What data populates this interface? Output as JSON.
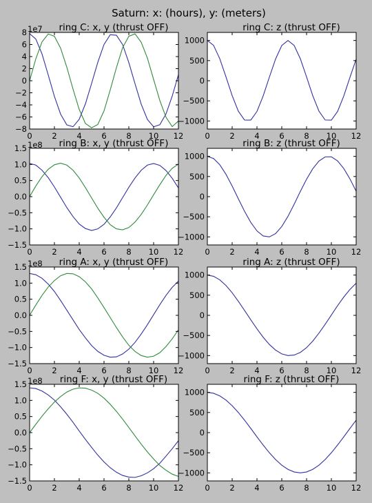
{
  "figure": {
    "title": "Saturn: x: (hours), y: (meters)",
    "background": "#bfbfbf",
    "series_colors": {
      "x": "#3030a0",
      "y": "#2e8b3a",
      "z": "#3030a0"
    }
  },
  "chart_data": [
    {
      "id": "ringC_xy",
      "type": "line",
      "title": "ring C: x, y (thrust OFF)",
      "xlim": [
        0,
        12
      ],
      "xticks": [
        0,
        2,
        4,
        6,
        8,
        10,
        12
      ],
      "ylim": [
        -8,
        8
      ],
      "yticks": [
        -8,
        -6,
        -4,
        -2,
        0,
        2,
        4,
        6,
        8
      ],
      "yscale_label": "1e7",
      "x": [
        0,
        0.5,
        1,
        1.5,
        2,
        2.5,
        3,
        3.5,
        4,
        4.5,
        5,
        5.5,
        6,
        6.5,
        7,
        7.5,
        8,
        8.5,
        9,
        9.5,
        10,
        10.5,
        11,
        11.5,
        12
      ],
      "series": [
        {
          "key": "x",
          "values": [
            7.8,
            6.91,
            4.43,
            0.96,
            -2.6,
            -5.54,
            -7.32,
            -7.62,
            -6.38,
            -3.83,
            -0.44,
            3.06,
            6.0,
            7.62,
            7.54,
            5.99,
            3.01,
            -0.5,
            -3.89,
            -6.43,
            -7.63,
            -7.29,
            -5.49,
            -2.54,
            0.98
          ]
        },
        {
          "key": "y",
          "values": [
            0,
            3.63,
            6.44,
            7.74,
            7.36,
            5.39,
            2.24,
            -1.39,
            -4.76,
            -7.08,
            -7.8,
            -7.24,
            -4.99,
            -1.53,
            2.17,
            5.48,
            7.36,
            7.76,
            6.37,
            3.73,
            0.21,
            -3.28,
            -6.05,
            -7.6,
            -6.68
          ]
        }
      ]
    },
    {
      "id": "ringC_z",
      "type": "line",
      "title": "ring C: z (thrust OFF)",
      "xlim": [
        0,
        12
      ],
      "xticks": [
        0,
        2,
        4,
        6,
        8,
        10,
        12
      ],
      "ylim": [
        -1200,
        1200
      ],
      "yticks": [
        -1000,
        -500,
        0,
        500,
        1000
      ],
      "yscale_label": "",
      "x": [
        0,
        0.5,
        1,
        1.5,
        2,
        2.5,
        3,
        3.5,
        4,
        4.5,
        5,
        5.5,
        6,
        6.5,
        7,
        7.5,
        8,
        8.5,
        9,
        9.5,
        10,
        10.5,
        11,
        11.5,
        12
      ],
      "series": [
        {
          "key": "z",
          "values": [
            1000,
            880,
            548,
            97,
            -370,
            -758,
            -976,
            -978,
            -763,
            -378,
            88,
            538,
            875,
            1000,
            877,
            545,
            95,
            -372,
            -756,
            -975,
            -978,
            -764,
            -380,
            85,
            535
          ]
        }
      ]
    },
    {
      "id": "ringB_xy",
      "type": "line",
      "title": "ring B: x, y (thrust OFF)",
      "xlim": [
        0,
        12
      ],
      "xticks": [
        0,
        2,
        4,
        6,
        8,
        10,
        12
      ],
      "ylim": [
        -1.5,
        1.5
      ],
      "yticks": [
        -1.5,
        -1.0,
        -0.5,
        0.0,
        0.5,
        1.0,
        1.5
      ],
      "yscale_label": "1e8",
      "x": [
        0,
        0.5,
        1,
        1.5,
        2,
        2.5,
        3,
        3.5,
        4,
        4.5,
        5,
        5.5,
        6,
        6.5,
        7,
        7.5,
        8,
        8.5,
        9,
        9.5,
        10,
        10.5,
        11,
        11.5,
        12
      ],
      "series": [
        {
          "key": "x",
          "values": [
            1.03,
            0.98,
            0.82,
            0.59,
            0.3,
            -0.02,
            -0.34,
            -0.62,
            -0.85,
            -0.99,
            -1.05,
            -1.0,
            -0.86,
            -0.63,
            -0.35,
            -0.03,
            0.29,
            0.58,
            0.82,
            0.98,
            1.03,
            0.97,
            0.81,
            0.57,
            0.27
          ]
        },
        {
          "key": "y",
          "values": [
            0,
            0.33,
            0.62,
            0.85,
            0.99,
            1.04,
            0.98,
            0.82,
            0.58,
            0.28,
            -0.04,
            -0.36,
            -0.64,
            -0.87,
            -1.0,
            -1.03,
            -0.96,
            -0.79,
            -0.55,
            -0.26,
            0.06,
            0.37,
            0.66,
            0.88,
            1.01
          ]
        }
      ]
    },
    {
      "id": "ringB_z",
      "type": "line",
      "title": "ring B: z (thrust OFF)",
      "xlim": [
        0,
        12
      ],
      "xticks": [
        0,
        2,
        4,
        6,
        8,
        10,
        12
      ],
      "ylim": [
        -1200,
        1200
      ],
      "yticks": [
        -1000,
        -500,
        0,
        500,
        1000
      ],
      "yscale_label": "",
      "x": [
        0,
        0.5,
        1,
        1.5,
        2,
        2.5,
        3,
        3.5,
        4,
        4.5,
        5,
        5.5,
        6,
        6.5,
        7,
        7.5,
        8,
        8.5,
        9,
        9.5,
        10,
        10.5,
        11,
        11.5,
        12
      ],
      "series": [
        {
          "key": "z",
          "values": [
            1000,
            947,
            793,
            556,
            264,
            -53,
            -364,
            -639,
            -851,
            -976,
            -1000,
            -918,
            -743,
            -490,
            -188,
            131,
            432,
            693,
            885,
            988,
            990,
            889,
            700,
            440,
            135
          ]
        }
      ]
    },
    {
      "id": "ringA_xy",
      "type": "line",
      "title": "ring A: x, y (thrust OFF)",
      "xlim": [
        0,
        12
      ],
      "xticks": [
        0,
        2,
        4,
        6,
        8,
        10,
        12
      ],
      "ylim": [
        -1.5,
        1.5
      ],
      "yticks": [
        -1.5,
        -1.0,
        -0.5,
        0.0,
        0.5,
        1.0,
        1.5
      ],
      "yscale_label": "1e8",
      "x": [
        0,
        0.5,
        1,
        1.5,
        2,
        2.5,
        3,
        3.5,
        4,
        4.5,
        5,
        5.5,
        6,
        6.5,
        7,
        7.5,
        8,
        8.5,
        9,
        9.5,
        10,
        10.5,
        11,
        11.5,
        12
      ],
      "series": [
        {
          "key": "x",
          "values": [
            1.3,
            1.26,
            1.15,
            0.97,
            0.74,
            0.46,
            0.16,
            -0.14,
            -0.44,
            -0.7,
            -0.94,
            -1.12,
            -1.24,
            -1.3,
            -1.29,
            -1.2,
            -1.05,
            -0.84,
            -0.58,
            -0.29,
            0.02,
            0.33,
            0.62,
            0.87,
            1.06
          ]
        },
        {
          "key": "y",
          "values": [
            0,
            0.32,
            0.62,
            0.88,
            1.08,
            1.23,
            1.3,
            1.29,
            1.2,
            1.04,
            0.82,
            0.54,
            0.24,
            -0.07,
            -0.38,
            -0.67,
            -0.93,
            -1.12,
            -1.25,
            -1.3,
            -1.27,
            -1.16,
            -0.97,
            -0.73,
            -0.45
          ]
        }
      ]
    },
    {
      "id": "ringA_z",
      "type": "line",
      "title": "ring A: z (thrust OFF)",
      "xlim": [
        0,
        12
      ],
      "xticks": [
        0,
        2,
        4,
        6,
        8,
        10,
        12
      ],
      "ylim": [
        -1200,
        1200
      ],
      "yticks": [
        -1000,
        -500,
        0,
        500,
        1000
      ],
      "yscale_label": "",
      "x": [
        0,
        0.5,
        1,
        1.5,
        2,
        2.5,
        3,
        3.5,
        4,
        4.5,
        5,
        5.5,
        6,
        6.5,
        7,
        7.5,
        8,
        8.5,
        9,
        9.5,
        10,
        10.5,
        11,
        11.5,
        12
      ],
      "series": [
        {
          "key": "z",
          "values": [
            1000,
            970,
            882,
            742,
            560,
            349,
            121,
            -111,
            -336,
            -544,
            -723,
            -864,
            -958,
            -1000,
            -987,
            -921,
            -803,
            -641,
            -443,
            -223,
            8,
            239,
            454,
            642,
            800
          ]
        }
      ]
    },
    {
      "id": "ringF_xy",
      "type": "line",
      "title": "ring F: x, y (thrust OFF)",
      "xlim": [
        0,
        12
      ],
      "xticks": [
        0,
        2,
        4,
        6,
        8,
        10,
        12
      ],
      "ylim": [
        -1.5,
        1.5
      ],
      "yticks": [
        -1.5,
        -1.0,
        -0.5,
        0.0,
        0.5,
        1.0,
        1.5
      ],
      "yscale_label": "1e8",
      "x": [
        0,
        0.5,
        1,
        1.5,
        2,
        2.5,
        3,
        3.5,
        4,
        4.5,
        5,
        5.5,
        6,
        6.5,
        7,
        7.5,
        8,
        8.5,
        9,
        9.5,
        10,
        10.5,
        11,
        11.5,
        12
      ],
      "series": [
        {
          "key": "x",
          "values": [
            1.39,
            1.37,
            1.29,
            1.17,
            1.01,
            0.8,
            0.57,
            0.32,
            0.05,
            -0.21,
            -0.46,
            -0.7,
            -0.91,
            -1.09,
            -1.23,
            -1.33,
            -1.38,
            -1.39,
            -1.34,
            -1.25,
            -1.12,
            -0.95,
            -0.73,
            -0.5,
            -0.25
          ]
        },
        {
          "key": "y",
          "values": [
            0,
            0.26,
            0.51,
            0.74,
            0.95,
            1.12,
            1.26,
            1.35,
            1.39,
            1.38,
            1.32,
            1.22,
            1.07,
            0.88,
            0.66,
            0.42,
            0.16,
            -0.1,
            -0.36,
            -0.6,
            -0.82,
            -1.02,
            -1.17,
            -1.29,
            -1.36
          ]
        }
      ]
    },
    {
      "id": "ringF_z",
      "type": "line",
      "title": "ring F: z (thrust OFF)",
      "xlim": [
        0,
        12
      ],
      "xticks": [
        0,
        2,
        4,
        6,
        8,
        10,
        12
      ],
      "ylim": [
        -1200,
        1200
      ],
      "yticks": [
        -1000,
        -500,
        0,
        500,
        1000
      ],
      "yscale_label": "",
      "x": [
        0,
        0.5,
        1,
        1.5,
        2,
        2.5,
        3,
        3.5,
        4,
        4.5,
        5,
        5.5,
        6,
        6.5,
        7,
        7.5,
        8,
        8.5,
        9,
        9.5,
        10,
        10.5,
        11,
        11.5,
        12
      ],
      "series": [
        {
          "key": "z",
          "values": [
            1000,
            978,
            913,
            809,
            669,
            500,
            309,
            105,
            -105,
            -309,
            -500,
            -669,
            -809,
            -913,
            -978,
            -1000,
            -978,
            -913,
            -809,
            -669,
            -500,
            -309,
            -105,
            105,
            309
          ]
        }
      ]
    }
  ]
}
